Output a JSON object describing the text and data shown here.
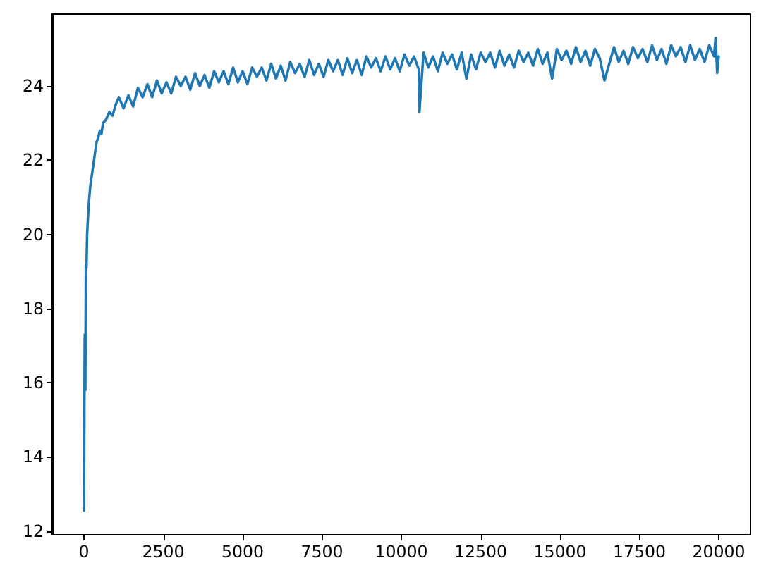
{
  "chart_data": {
    "type": "line",
    "x": [
      0,
      25,
      45,
      60,
      80,
      100,
      130,
      160,
      200,
      250,
      300,
      350,
      400,
      450,
      500,
      550,
      600,
      700,
      800,
      900,
      1000,
      1100,
      1250,
      1400,
      1550,
      1700,
      1850,
      2000,
      2150,
      2300,
      2450,
      2600,
      2750,
      2900,
      3050,
      3200,
      3350,
      3500,
      3650,
      3800,
      3950,
      4100,
      4250,
      4400,
      4550,
      4700,
      4850,
      5000,
      5150,
      5300,
      5450,
      5600,
      5750,
      5900,
      6050,
      6200,
      6350,
      6500,
      6650,
      6800,
      6950,
      7100,
      7250,
      7400,
      7550,
      7700,
      7850,
      8000,
      8150,
      8300,
      8450,
      8600,
      8750,
      8900,
      9050,
      9200,
      9350,
      9500,
      9650,
      9800,
      9950,
      10100,
      10250,
      10400,
      10550,
      10570,
      10700,
      10850,
      11000,
      11150,
      11300,
      11450,
      11600,
      11750,
      11900,
      12050,
      12200,
      12350,
      12500,
      12650,
      12800,
      12950,
      13100,
      13250,
      13400,
      13550,
      13700,
      13850,
      14000,
      14150,
      14300,
      14450,
      14600,
      14750,
      14900,
      15050,
      15200,
      15350,
      15500,
      15650,
      15800,
      15950,
      16100,
      16250,
      16400,
      16550,
      16700,
      16850,
      17000,
      17150,
      17300,
      17450,
      17600,
      17750,
      17900,
      18050,
      18200,
      18350,
      18500,
      18650,
      18800,
      18950,
      19100,
      19250,
      19400,
      19550,
      19700,
      19850,
      19900,
      19950,
      19999
    ],
    "values": [
      12.55,
      17.3,
      15.8,
      19.2,
      19.1,
      20.0,
      20.5,
      20.9,
      21.3,
      21.6,
      21.9,
      22.2,
      22.5,
      22.6,
      22.8,
      22.7,
      23.0,
      23.1,
      23.3,
      23.2,
      23.5,
      23.7,
      23.4,
      23.75,
      23.45,
      23.95,
      23.7,
      24.05,
      23.7,
      24.15,
      23.8,
      24.1,
      23.8,
      24.25,
      24.0,
      24.25,
      23.9,
      24.35,
      24.0,
      24.3,
      23.95,
      24.4,
      24.1,
      24.4,
      24.05,
      24.5,
      24.1,
      24.4,
      24.05,
      24.5,
      24.25,
      24.5,
      24.15,
      24.6,
      24.2,
      24.55,
      24.15,
      24.65,
      24.35,
      24.6,
      24.25,
      24.7,
      24.3,
      24.6,
      24.25,
      24.7,
      24.4,
      24.7,
      24.3,
      24.75,
      24.35,
      24.7,
      24.3,
      24.8,
      24.5,
      24.75,
      24.4,
      24.8,
      24.45,
      24.75,
      24.4,
      24.85,
      24.55,
      24.8,
      24.45,
      23.3,
      24.9,
      24.5,
      24.8,
      24.4,
      24.9,
      24.6,
      24.85,
      24.45,
      24.9,
      24.2,
      24.85,
      24.45,
      24.9,
      24.65,
      24.9,
      24.5,
      24.95,
      24.55,
      24.85,
      24.5,
      24.95,
      24.65,
      24.9,
      24.55,
      25.0,
      24.6,
      24.9,
      24.2,
      25.0,
      24.7,
      24.95,
      24.6,
      25.05,
      24.65,
      24.95,
      24.55,
      25.0,
      24.75,
      24.15,
      24.6,
      25.05,
      24.65,
      24.95,
      24.6,
      25.05,
      24.75,
      25.0,
      24.65,
      25.1,
      24.7,
      25.0,
      24.6,
      25.1,
      24.8,
      25.05,
      24.65,
      25.1,
      24.7,
      25.0,
      24.65,
      25.1,
      24.8,
      25.3,
      24.35,
      24.8
    ],
    "color": "#1f77b4",
    "xlim": [
      -1000,
      21000
    ],
    "ylim": [
      11.9,
      25.94
    ],
    "xticks": [
      0,
      2500,
      5000,
      7500,
      10000,
      12500,
      15000,
      17500,
      20000
    ],
    "yticks": [
      12,
      14,
      16,
      18,
      20,
      22,
      24
    ],
    "grid": false,
    "line_style": "solid"
  }
}
